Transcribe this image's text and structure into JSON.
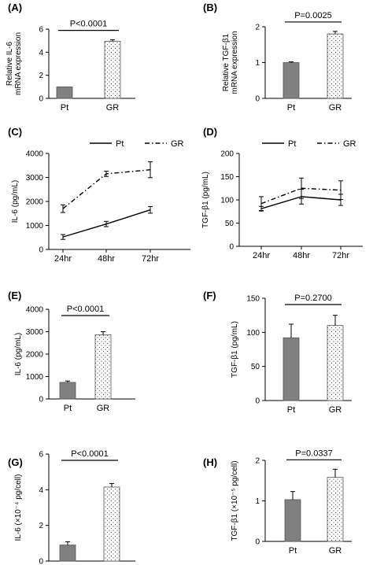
{
  "figure": {
    "colors": {
      "bar_pt": "#808080",
      "bar_gr": "#ffffff",
      "line": "#000000"
    }
  },
  "chart_data": [
    {
      "panel": "(A)",
      "type": "bar",
      "categories": [
        "Pt",
        "GR"
      ],
      "values": [
        1.0,
        4.95
      ],
      "errors": [
        0.0,
        0.12
      ],
      "ylabel": [
        "Relative IL-6",
        "mRNA expression"
      ],
      "ylim": [
        0,
        6
      ],
      "yticks": [
        "0",
        "2",
        "4",
        "6"
      ],
      "pvalue": "P<0.0001"
    },
    {
      "panel": "(B)",
      "type": "bar",
      "categories": [
        "Pt",
        "GR"
      ],
      "values": [
        1.0,
        1.8
      ],
      "errors": [
        0.02,
        0.07
      ],
      "ylabel": [
        "Relative TGF-β1",
        "mRNA expression"
      ],
      "ylim": [
        0,
        2
      ],
      "yticks": [
        "0",
        "1",
        "2"
      ],
      "pvalue": "P=0.0025"
    },
    {
      "panel": "(C)",
      "type": "line",
      "categories": [
        "24hr",
        "48hr",
        "72hr"
      ],
      "series": [
        {
          "name": "Pt",
          "style": "solid",
          "values": [
            520,
            1060,
            1650
          ],
          "errors": [
            100,
            110,
            140
          ]
        },
        {
          "name": "GR",
          "style": "dashdot",
          "values": [
            1700,
            3150,
            3320
          ],
          "errors": [
            160,
            110,
            330
          ]
        }
      ],
      "ylabel": [
        "IL-6 (pg/mL)"
      ],
      "ylim": [
        0,
        4000
      ],
      "yticks": [
        "0",
        "1000",
        "2000",
        "3000",
        "4000"
      ],
      "legend": "top-right"
    },
    {
      "panel": "(D)",
      "type": "line",
      "categories": [
        "24hr",
        "48hr",
        "72hr"
      ],
      "series": [
        {
          "name": "Pt",
          "style": "solid",
          "values": [
            81,
            107,
            100
          ],
          "errors": [
            5,
            16,
            12
          ]
        },
        {
          "name": "GR",
          "style": "dashdot",
          "values": [
            92,
            125,
            121
          ],
          "errors": [
            15,
            22,
            20
          ]
        }
      ],
      "ylabel": [
        "TGF-β1 (pg/mL)"
      ],
      "ylim": [
        0,
        200
      ],
      "yticks": [
        "0",
        "50",
        "100",
        "150",
        "200"
      ],
      "legend": "top-right"
    },
    {
      "panel": "(E)",
      "type": "bar",
      "categories": [
        "Pt",
        "GR"
      ],
      "values": [
        740,
        2860
      ],
      "errors": [
        60,
        140
      ],
      "ylabel": [
        "IL-6 (pg/mL)"
      ],
      "ylim": [
        0,
        4000
      ],
      "yticks": [
        "0",
        "1000",
        "2000",
        "3000",
        "4000"
      ],
      "pvalue": "P<0.0001"
    },
    {
      "panel": "(F)",
      "type": "bar",
      "categories": [
        "Pt",
        "GR"
      ],
      "values": [
        92,
        110
      ],
      "errors": [
        20,
        15
      ],
      "ylabel": [
        "TGF-β1 (pg/mL)"
      ],
      "ylim": [
        0,
        150
      ],
      "yticks": [
        "0",
        "50",
        "100",
        "150"
      ],
      "pvalue": "P=0.2700"
    },
    {
      "panel": "(G)",
      "type": "bar",
      "categories": [
        "Pt",
        "GR"
      ],
      "values": [
        0.9,
        4.15
      ],
      "errors": [
        0.18,
        0.2
      ],
      "ylabel": [
        "IL-6 (×10⁻⁴ pg/cell)"
      ],
      "ylim": [
        0,
        6
      ],
      "yticks": [
        "0",
        "2",
        "4",
        "6"
      ],
      "pvalue": "P<0.0001"
    },
    {
      "panel": "(H)",
      "type": "bar",
      "categories": [
        "Pt",
        "GR"
      ],
      "values": [
        1.03,
        1.58
      ],
      "errors": [
        0.2,
        0.2
      ],
      "ylabel": [
        "TGF-β1 (×10⁻⁵ pg/cell)"
      ],
      "ylim": [
        0,
        2
      ],
      "yticks": [
        "0",
        "1",
        "2"
      ],
      "pvalue": "P=0.0337"
    }
  ]
}
